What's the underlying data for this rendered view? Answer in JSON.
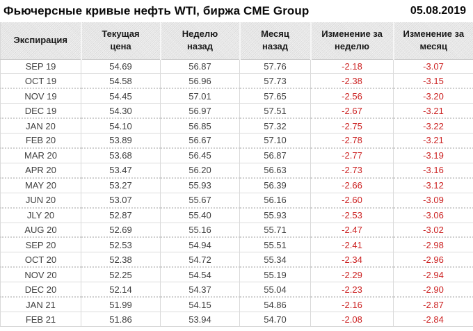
{
  "title": "Фьючерсные кривые нефть WTI, биржа CME Group",
  "date": "05.08.2019",
  "colors": {
    "negative_change": "#cc2222",
    "header_background": "#e2e2e2",
    "grid_line": "#d9d9d9",
    "body_text": "#404040",
    "title_text": "#0a0a0a"
  },
  "table": {
    "columns": [
      {
        "key": "exp",
        "label": "Экспирация"
      },
      {
        "key": "current",
        "label": "Текущая\nцена"
      },
      {
        "key": "week_ago",
        "label": "Неделю\nназад"
      },
      {
        "key": "month_ago",
        "label": "Месяц\nназад"
      },
      {
        "key": "chg_week",
        "label": "Изменение за\nнеделю"
      },
      {
        "key": "chg_month",
        "label": "Изменение за\nмесяц"
      }
    ],
    "rows": [
      {
        "exp": "SEP 19",
        "current": "54.69",
        "week_ago": "56.87",
        "month_ago": "57.76",
        "chg_week": "-2.18",
        "chg_month": "-3.07"
      },
      {
        "exp": "OCT 19",
        "current": "54.58",
        "week_ago": "56.96",
        "month_ago": "57.73",
        "chg_week": "-2.38",
        "chg_month": "-3.15"
      },
      {
        "exp": "NOV 19",
        "current": "54.45",
        "week_ago": "57.01",
        "month_ago": "57.65",
        "chg_week": "-2.56",
        "chg_month": "-3.20"
      },
      {
        "exp": "DEC 19",
        "current": "54.30",
        "week_ago": "56.97",
        "month_ago": "57.51",
        "chg_week": "-2.67",
        "chg_month": "-3.21"
      },
      {
        "exp": "JAN 20",
        "current": "54.10",
        "week_ago": "56.85",
        "month_ago": "57.32",
        "chg_week": "-2.75",
        "chg_month": "-3.22"
      },
      {
        "exp": "FEB 20",
        "current": "53.89",
        "week_ago": "56.67",
        "month_ago": "57.10",
        "chg_week": "-2.78",
        "chg_month": "-3.21"
      },
      {
        "exp": "MAR 20",
        "current": "53.68",
        "week_ago": "56.45",
        "month_ago": "56.87",
        "chg_week": "-2.77",
        "chg_month": "-3.19"
      },
      {
        "exp": "APR 20",
        "current": "53.47",
        "week_ago": "56.20",
        "month_ago": "56.63",
        "chg_week": "-2.73",
        "chg_month": "-3.16"
      },
      {
        "exp": "MAY 20",
        "current": "53.27",
        "week_ago": "55.93",
        "month_ago": "56.39",
        "chg_week": "-2.66",
        "chg_month": "-3.12"
      },
      {
        "exp": "JUN 20",
        "current": "53.07",
        "week_ago": "55.67",
        "month_ago": "56.16",
        "chg_week": "-2.60",
        "chg_month": "-3.09"
      },
      {
        "exp": "JLY 20",
        "current": "52.87",
        "week_ago": "55.40",
        "month_ago": "55.93",
        "chg_week": "-2.53",
        "chg_month": "-3.06"
      },
      {
        "exp": "AUG 20",
        "current": "52.69",
        "week_ago": "55.16",
        "month_ago": "55.71",
        "chg_week": "-2.47",
        "chg_month": "-3.02"
      },
      {
        "exp": "SEP 20",
        "current": "52.53",
        "week_ago": "54.94",
        "month_ago": "55.51",
        "chg_week": "-2.41",
        "chg_month": "-2.98"
      },
      {
        "exp": "OCT 20",
        "current": "52.38",
        "week_ago": "54.72",
        "month_ago": "55.34",
        "chg_week": "-2.34",
        "chg_month": "-2.96"
      },
      {
        "exp": "NOV 20",
        "current": "52.25",
        "week_ago": "54.54",
        "month_ago": "55.19",
        "chg_week": "-2.29",
        "chg_month": "-2.94"
      },
      {
        "exp": "DEC 20",
        "current": "52.14",
        "week_ago": "54.37",
        "month_ago": "55.04",
        "chg_week": "-2.23",
        "chg_month": "-2.90"
      },
      {
        "exp": "JAN 21",
        "current": "51.99",
        "week_ago": "54.15",
        "month_ago": "54.86",
        "chg_week": "-2.16",
        "chg_month": "-2.87"
      },
      {
        "exp": "FEB 21",
        "current": "51.86",
        "week_ago": "53.94",
        "month_ago": "54.70",
        "chg_week": "-2.08",
        "chg_month": "-2.84"
      }
    ]
  },
  "chart_data": {
    "type": "table",
    "title": "Фьючерсные кривые нефть WTI, биржа CME Group",
    "date": "05.08.2019",
    "categories": [
      "SEP 19",
      "OCT 19",
      "NOV 19",
      "DEC 19",
      "JAN 20",
      "FEB 20",
      "MAR 20",
      "APR 20",
      "MAY 20",
      "JUN 20",
      "JLY 20",
      "AUG 20",
      "SEP 20",
      "OCT 20",
      "NOV 20",
      "DEC 20",
      "JAN 21",
      "FEB 21"
    ],
    "series": [
      {
        "name": "Текущая цена",
        "values": [
          54.69,
          54.58,
          54.45,
          54.3,
          54.1,
          53.89,
          53.68,
          53.47,
          53.27,
          53.07,
          52.87,
          52.69,
          52.53,
          52.38,
          52.25,
          52.14,
          51.99,
          51.86
        ]
      },
      {
        "name": "Неделю назад",
        "values": [
          56.87,
          56.96,
          57.01,
          56.97,
          56.85,
          56.67,
          56.45,
          56.2,
          55.93,
          55.67,
          55.4,
          55.16,
          54.94,
          54.72,
          54.54,
          54.37,
          54.15,
          53.94
        ]
      },
      {
        "name": "Месяц назад",
        "values": [
          57.76,
          57.73,
          57.65,
          57.51,
          57.32,
          57.1,
          56.87,
          56.63,
          56.39,
          56.16,
          55.93,
          55.71,
          55.51,
          55.34,
          55.19,
          55.04,
          54.86,
          54.7
        ]
      },
      {
        "name": "Изменение за неделю",
        "values": [
          -2.18,
          -2.38,
          -2.56,
          -2.67,
          -2.75,
          -2.78,
          -2.77,
          -2.73,
          -2.66,
          -2.6,
          -2.53,
          -2.47,
          -2.41,
          -2.34,
          -2.29,
          -2.23,
          -2.16,
          -2.08
        ]
      },
      {
        "name": "Изменение за месяц",
        "values": [
          -3.07,
          -3.15,
          -3.2,
          -3.21,
          -3.22,
          -3.21,
          -3.19,
          -3.16,
          -3.12,
          -3.09,
          -3.06,
          -3.02,
          -2.98,
          -2.96,
          -2.94,
          -2.9,
          -2.87,
          -2.84
        ]
      }
    ]
  }
}
